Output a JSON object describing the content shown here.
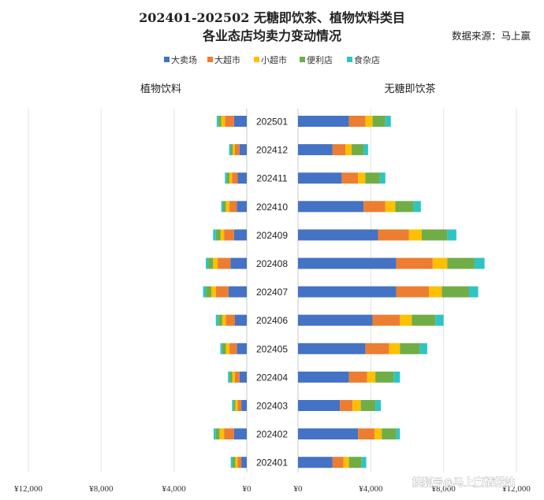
{
  "header": {
    "title_line1": "202401-202502 无糖即饮茶、植物饮料类目",
    "title_line2": "各业态店均卖力变动情况",
    "source": "数据来源：马上赢"
  },
  "legend": [
    {
      "name": "大卖场",
      "color": "#4472C4"
    },
    {
      "name": "大超市",
      "color": "#ED7D31"
    },
    {
      "name": "小超市",
      "color": "#FFC000"
    },
    {
      "name": "便利店",
      "color": "#70AD47"
    },
    {
      "name": "食杂店",
      "color": "#2EC4C4"
    }
  ],
  "watermark": "搜狐号@马上赢情报站",
  "chart_data": {
    "type": "bar",
    "categories": [
      "202501",
      "202412",
      "202411",
      "202410",
      "202409",
      "202408",
      "202407",
      "202406",
      "202405",
      "202404",
      "202403",
      "202402",
      "202401"
    ],
    "panels": [
      {
        "title": "植物饮料",
        "direction": "left",
        "xlim": [
          0,
          12000
        ],
        "ticks": [
          0,
          4000,
          8000,
          12000
        ],
        "tick_labels": [
          "¥0",
          "¥4,000",
          "¥8,000",
          "¥12,000"
        ],
        "series": [
          {
            "name": "大卖场",
            "values": [
              700,
              400,
              500,
              550,
              700,
              900,
              1000,
              650,
              550,
              400,
              300,
              700,
              300
            ]
          },
          {
            "name": "大超市",
            "values": [
              500,
              250,
              300,
              400,
              550,
              700,
              700,
              500,
              400,
              250,
              200,
              550,
              200
            ]
          },
          {
            "name": "小超市",
            "values": [
              200,
              120,
              150,
              200,
              200,
              250,
              250,
              200,
              200,
              150,
              130,
              250,
              130
            ]
          },
          {
            "name": "便利店",
            "values": [
              150,
              120,
              150,
              150,
              250,
              250,
              300,
              200,
              200,
              130,
              100,
              200,
              150
            ]
          },
          {
            "name": "食杂店",
            "values": [
              100,
              80,
              100,
              100,
              150,
              150,
              150,
              150,
              100,
              100,
              80,
              120,
              100
            ]
          }
        ]
      },
      {
        "title": "无糖即饮茶",
        "direction": "right",
        "xlim": [
          0,
          12000
        ],
        "ticks": [
          0,
          4000,
          8000,
          12000
        ],
        "tick_labels": [
          "¥0",
          "¥4,000",
          "¥8,000",
          "¥12,000"
        ],
        "series": [
          {
            "name": "大卖场",
            "values": [
              2800,
              1900,
              2400,
              3600,
              4400,
              5400,
              5400,
              4100,
              3700,
              2800,
              2300,
              3300,
              1900
            ]
          },
          {
            "name": "大超市",
            "values": [
              900,
              700,
              900,
              1200,
              1700,
              2000,
              1800,
              1500,
              1300,
              1000,
              700,
              900,
              600
            ]
          },
          {
            "name": "小超市",
            "values": [
              400,
              350,
              400,
              550,
              700,
              800,
              700,
              650,
              600,
              450,
              450,
              400,
              300
            ]
          },
          {
            "name": "便利店",
            "values": [
              700,
              650,
              800,
              1000,
              1400,
              1500,
              1500,
              1300,
              1100,
              1000,
              800,
              800,
              700
            ]
          },
          {
            "name": "食杂店",
            "values": [
              300,
              250,
              300,
              400,
              500,
              550,
              500,
              450,
              400,
              350,
              300,
              200,
              250
            ]
          }
        ]
      }
    ],
    "grid": true,
    "legend_position": "top-center"
  }
}
